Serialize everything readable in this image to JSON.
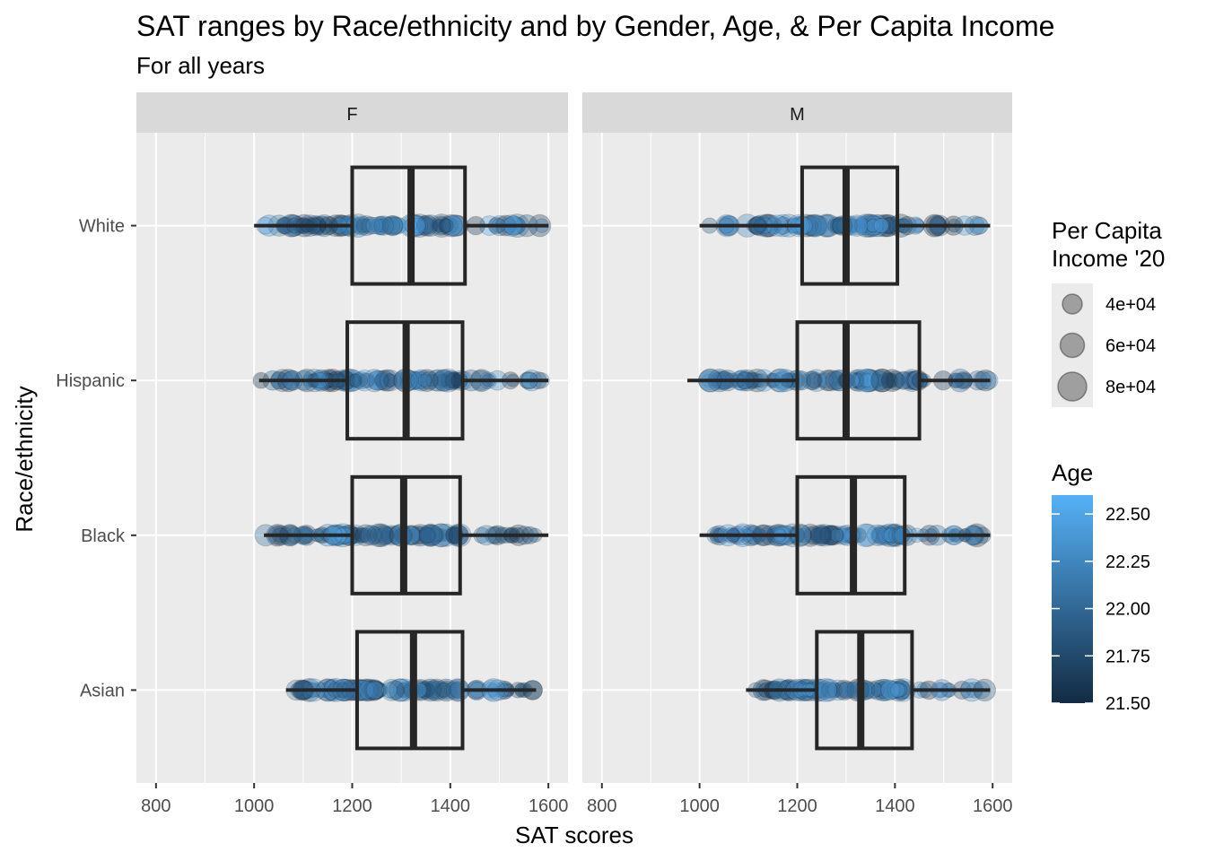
{
  "chart_data": {
    "type": "box",
    "title": "SAT ranges by Race/ethnicity and by Gender, Age, & Per Capita Income",
    "subtitle": "For all years",
    "xlabel": "SAT scores",
    "ylabel": "Race/ethnicity",
    "xlim": [
      760,
      1640
    ],
    "x_ticks": [
      800,
      1000,
      1200,
      1400,
      1600
    ],
    "categories": [
      "White",
      "Hispanic",
      "Black",
      "Asian"
    ],
    "facets": [
      {
        "name": "F",
        "boxes": [
          {
            "category": "White",
            "min": 1000,
            "q1": 1200,
            "median": 1320,
            "q3": 1430,
            "max": 1600
          },
          {
            "category": "Hispanic",
            "min": 1010,
            "q1": 1190,
            "median": 1310,
            "q3": 1425,
            "max": 1600
          },
          {
            "category": "Black",
            "min": 1020,
            "q1": 1200,
            "median": 1305,
            "q3": 1420,
            "max": 1600
          },
          {
            "category": "Asian",
            "min": 1065,
            "q1": 1210,
            "median": 1325,
            "q3": 1425,
            "max": 1575
          }
        ]
      },
      {
        "name": "M",
        "boxes": [
          {
            "category": "White",
            "min": 1000,
            "q1": 1210,
            "median": 1300,
            "q3": 1405,
            "max": 1595
          },
          {
            "category": "Hispanic",
            "min": 975,
            "q1": 1200,
            "median": 1300,
            "q3": 1450,
            "max": 1595
          },
          {
            "category": "Black",
            "min": 1000,
            "q1": 1200,
            "median": 1315,
            "q3": 1420,
            "max": 1595
          },
          {
            "category": "Asian",
            "min": 1095,
            "q1": 1240,
            "median": 1330,
            "q3": 1435,
            "max": 1595
          }
        ]
      }
    ],
    "legend_size": {
      "title": "Per Capita\nIncome '20",
      "entries": [
        {
          "label": "4e+04",
          "value": 40000
        },
        {
          "label": "6e+04",
          "value": 60000
        },
        {
          "label": "8e+04",
          "value": 80000
        }
      ]
    },
    "legend_color": {
      "title": "Age",
      "range": [
        21.5,
        22.6
      ],
      "ticks": [
        {
          "label": "22.50",
          "value": 22.5
        },
        {
          "label": "22.25",
          "value": 22.25
        },
        {
          "label": "22.00",
          "value": 22.0
        },
        {
          "label": "21.75",
          "value": 21.75
        },
        {
          "label": "21.50",
          "value": 21.5
        }
      ],
      "low_color": "#132B43",
      "high_color": "#56B1F7"
    },
    "grid": true,
    "legend_position": "right"
  }
}
